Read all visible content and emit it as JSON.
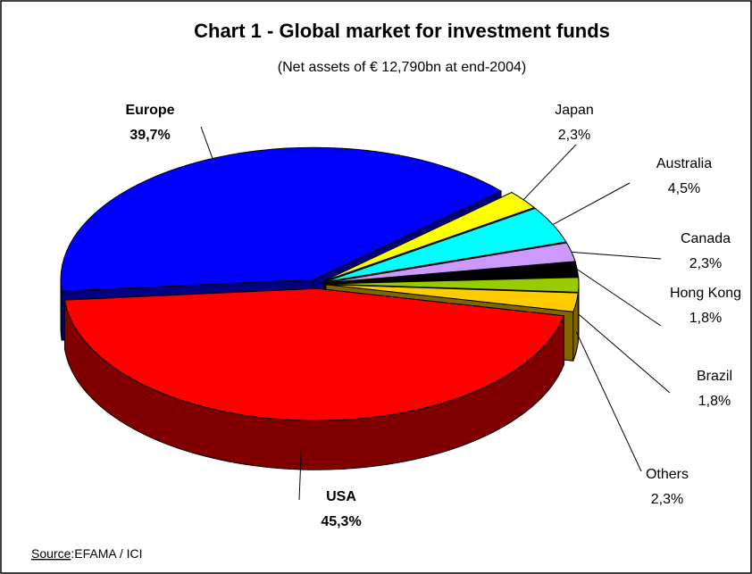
{
  "chart_data": {
    "type": "pie",
    "title": "Chart 1 - Global market for investment funds",
    "subtitle": "(Net assets of € 12,790bn at end-2004)",
    "categories": [
      "Europe",
      "Japan",
      "Australia",
      "Canada",
      "Hong Kong",
      "Brazil",
      "Others",
      "USA"
    ],
    "values": [
      39.7,
      2.3,
      4.5,
      2.3,
      1.8,
      1.8,
      2.3,
      45.3
    ],
    "value_labels": [
      "39,7%",
      "2,3%",
      "4,5%",
      "2,3%",
      "1,8%",
      "1,8%",
      "2,3%",
      "45,3%"
    ],
    "colors": [
      "#0000ff",
      "#ffff00",
      "#00ffff",
      "#cc99ff",
      "#000000",
      "#99cc00",
      "#ffcc00",
      "#ff0000"
    ],
    "source_label": "Source",
    "source_text": ":EFAMA / ICI"
  }
}
